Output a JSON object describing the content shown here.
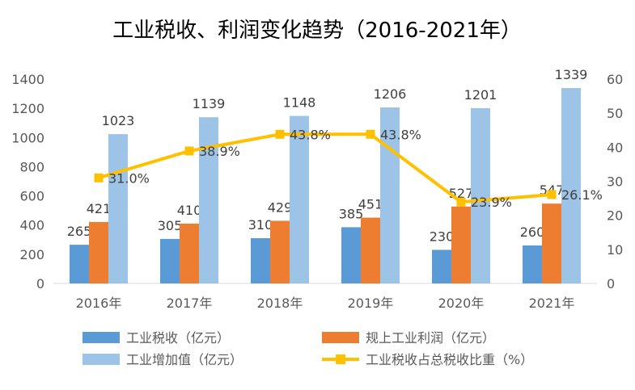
{
  "chart_data": {
    "type": "bar",
    "title": "工业税收、利润变化趋势（2016-2021年）",
    "categories": [
      "2016年",
      "2017年",
      "2018年",
      "2019年",
      "2020年",
      "2021年"
    ],
    "series": [
      {
        "name": "工业税收（亿元）",
        "type": "bar",
        "axis": "left",
        "color": "#5B9BD5",
        "values": [
          265,
          305,
          310,
          385,
          230,
          260
        ]
      },
      {
        "name": "规上工业利润（亿元）",
        "type": "bar",
        "axis": "left",
        "color": "#ED7D31",
        "values": [
          421,
          410,
          429,
          451,
          527,
          547
        ]
      },
      {
        "name": "工业增加值（亿元）",
        "type": "bar",
        "axis": "left",
        "color": "#9DC3E6",
        "values": [
          1023,
          1139,
          1148,
          1206,
          1201,
          1339
        ]
      },
      {
        "name": "工业税收占总税收比重（%）",
        "type": "line",
        "axis": "right",
        "color": "#FFC000",
        "values": [
          31.0,
          38.9,
          43.8,
          43.8,
          23.9,
          26.1
        ],
        "labels": [
          "31.0%",
          "38.9%",
          "43.8%",
          "43.8%",
          "23.9%",
          "26.1%"
        ]
      }
    ],
    "y_left": {
      "min": 0,
      "max": 1400,
      "ticks": [
        "0",
        "200",
        "400",
        "600",
        "800",
        "1000",
        "1200",
        "1400"
      ]
    },
    "y_right": {
      "min": 0,
      "max": 60,
      "ticks": [
        "0",
        "10",
        "20",
        "30",
        "40",
        "50",
        "60"
      ]
    },
    "grid": false,
    "legend_position": "bottom"
  }
}
